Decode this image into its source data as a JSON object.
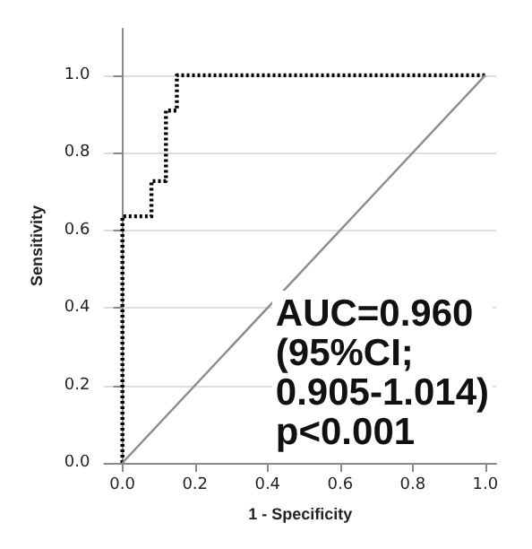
{
  "chart_data": {
    "type": "line",
    "xlabel": "1 - Specificity",
    "ylabel": "Sensitivity",
    "series": [
      {
        "color": "#000000",
        "line_style": "dotted",
        "x": [
          0,
          0,
          0.08,
          0.08,
          0.12,
          0.12,
          0.15,
          0.15,
          1
        ],
        "values": [
          0,
          0.636,
          0.636,
          0.727,
          0.727,
          0.909,
          0.909,
          1,
          1
        ]
      },
      {
        "color": "#8c8c8c",
        "line_style": "solid",
        "x": [
          0,
          1
        ],
        "values": [
          0,
          1
        ]
      }
    ],
    "xlim": [
      -0.05,
      1.03
    ],
    "ylim": [
      0,
      1.12
    ],
    "xticks": [
      {
        "value": 0,
        "label": "0.0"
      },
      {
        "value": 0.2,
        "label": "0.2"
      },
      {
        "value": 0.4,
        "label": "0.4"
      },
      {
        "value": 0.6,
        "label": "0.6"
      },
      {
        "value": 0.8,
        "label": "0.8"
      },
      {
        "value": 1,
        "label": "1.0"
      }
    ],
    "yticks": [
      {
        "value": 0,
        "label": "0.0"
      },
      {
        "value": 0.2,
        "label": "0.2"
      },
      {
        "value": 0.4,
        "label": "0.4"
      },
      {
        "value": 0.6,
        "label": "0.6"
      },
      {
        "value": 0.8,
        "label": "0.8"
      },
      {
        "value": 1,
        "label": "1.0"
      }
    ],
    "grid": "y",
    "marker": "none",
    "annotations": [
      "AUC=0.960\n(95%CI;\n0.905-1.014)\np<0.001"
    ]
  }
}
